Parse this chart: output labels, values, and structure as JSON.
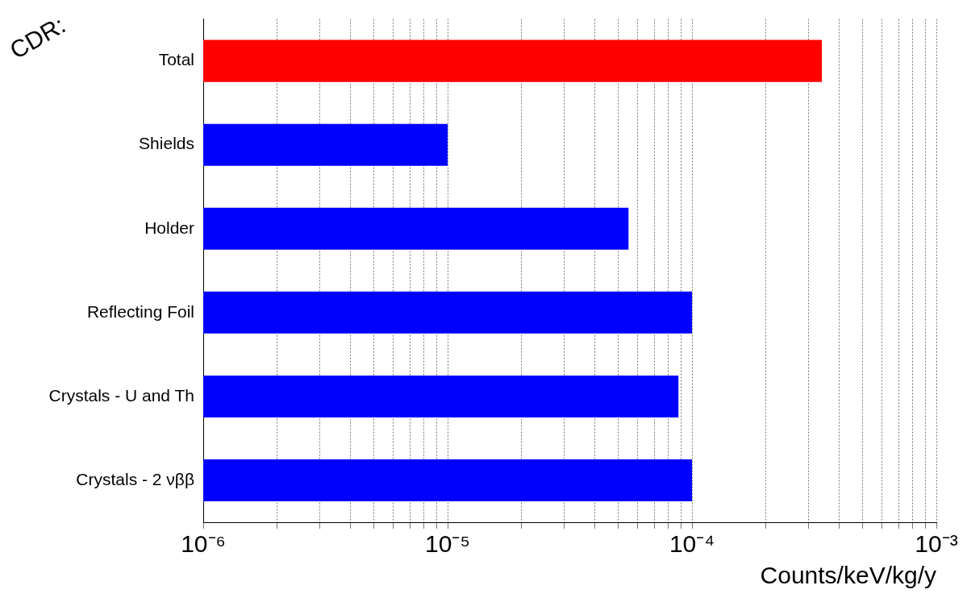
{
  "chart_data": {
    "type": "bar",
    "orientation": "horizontal",
    "xlabel": "Counts/keV/kg/y",
    "annotations": [
      "CDR:"
    ],
    "categories": [
      "Total",
      "Shields",
      "Holder",
      "Reflecting Foil",
      "Crystals - U and Th",
      "Crystals - 2 νββ"
    ],
    "values": [
      0.00034,
      1e-05,
      5.5e-05,
      0.0001,
      8.8e-05,
      0.0001
    ],
    "colors": [
      "#ff0000",
      "#0000ff",
      "#0000ff",
      "#0000ff",
      "#0000ff",
      "#0000ff"
    ],
    "log": "x",
    "xlim": [
      1e-06,
      0.001
    ],
    "xticks": [
      {
        "value": 1e-06,
        "label": "10⁻⁶"
      },
      {
        "value": 2e-06,
        "label": null
      },
      {
        "value": 3e-06,
        "label": null
      },
      {
        "value": 4e-06,
        "label": null
      },
      {
        "value": 5e-06,
        "label": null
      },
      {
        "value": 6e-06,
        "label": null
      },
      {
        "value": 7e-06,
        "label": null
      },
      {
        "value": 8e-06,
        "label": null
      },
      {
        "value": 9e-06,
        "label": null
      },
      {
        "value": 1e-05,
        "label": "10⁻⁵"
      },
      {
        "value": 2e-05,
        "label": null
      },
      {
        "value": 3e-05,
        "label": null
      },
      {
        "value": 4e-05,
        "label": null
      },
      {
        "value": 5e-05,
        "label": null
      },
      {
        "value": 6e-05,
        "label": null
      },
      {
        "value": 7e-05,
        "label": null
      },
      {
        "value": 8e-05,
        "label": null
      },
      {
        "value": 9e-05,
        "label": null
      },
      {
        "value": 0.0001,
        "label": "10⁻⁴"
      },
      {
        "value": 0.0002,
        "label": null
      },
      {
        "value": 0.0003,
        "label": null
      },
      {
        "value": 0.0004,
        "label": null
      },
      {
        "value": 0.0005,
        "label": null
      },
      {
        "value": 0.0006,
        "label": null
      },
      {
        "value": 0.0007,
        "label": null
      },
      {
        "value": 0.0008,
        "label": null
      },
      {
        "value": 0.0009,
        "label": null
      },
      {
        "value": 0.001,
        "label": "10⁻³"
      }
    ],
    "grid": "x",
    "legend": false
  }
}
